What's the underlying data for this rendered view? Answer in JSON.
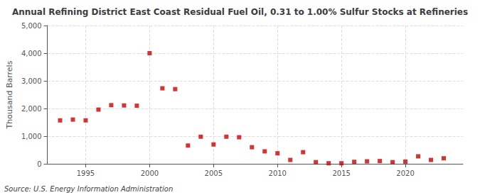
{
  "chart_data": {
    "type": "scatter",
    "title": "Annual Refining District East Coast Residual Fuel Oil, 0.31 to 1.00% Sulfur Stocks at Refineries",
    "ylabel": "Thousand Barrels",
    "annotations": [
      "Source: U.S. Energy Information Administration"
    ],
    "x": [
      1993,
      1994,
      1995,
      1996,
      1997,
      1998,
      1999,
      2000,
      2001,
      2002,
      2003,
      2004,
      2005,
      2006,
      2007,
      2008,
      2009,
      2010,
      2011,
      2012,
      2013,
      2014,
      2015,
      2016,
      2017,
      2018,
      2019,
      2020,
      2021,
      2022,
      2023
    ],
    "values": [
      1570,
      1600,
      1570,
      1960,
      2120,
      2110,
      2100,
      4000,
      2730,
      2700,
      660,
      980,
      700,
      980,
      960,
      600,
      450,
      380,
      140,
      420,
      60,
      20,
      20,
      70,
      90,
      100,
      60,
      80,
      270,
      140,
      200
    ],
    "color": "#cc0000",
    "marker": "square",
    "xlim": [
      1992,
      2024.5
    ],
    "xticks": [
      1995,
      2000,
      2005,
      2010,
      2015,
      2020
    ],
    "ylim": [
      0,
      5000
    ],
    "yticks": [
      0,
      {
        "value": 1000,
        "label": "1,000"
      },
      {
        "value": 2000,
        "label": "2,000"
      },
      {
        "value": 3000,
        "label": "3,000"
      },
      {
        "value": 4000,
        "label": "4,000"
      },
      {
        "value": 5000,
        "label": "5,000"
      }
    ],
    "grid": true
  }
}
